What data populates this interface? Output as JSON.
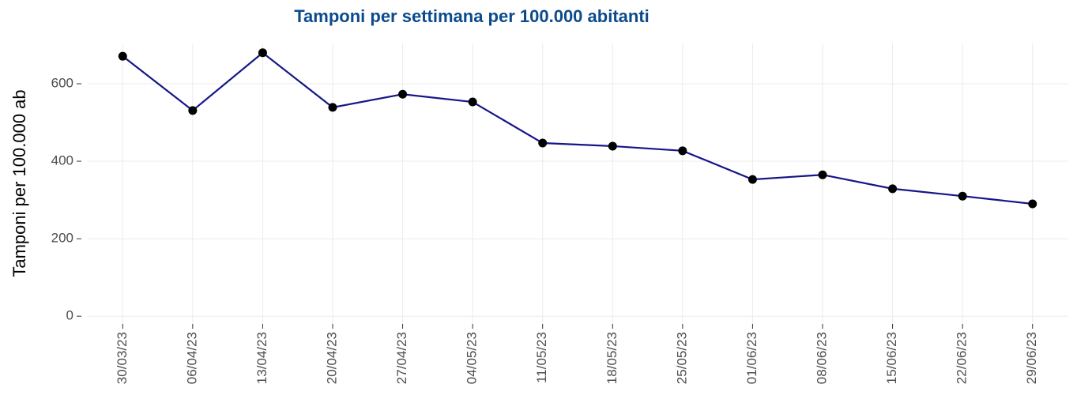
{
  "chart_data": {
    "type": "line",
    "title": "Tamponi per settimana per 100.000 abitanti",
    "y_label": "Tamponi per 100.000 ab",
    "categories": [
      "30/03/23",
      "06/04/23",
      "13/04/23",
      "20/04/23",
      "27/04/23",
      "04/05/23",
      "11/05/23",
      "18/05/23",
      "25/05/23",
      "01/06/23",
      "08/06/23",
      "15/06/23",
      "22/06/23",
      "29/06/23"
    ],
    "values": [
      671,
      531,
      680,
      539,
      573,
      553,
      447,
      439,
      427,
      353,
      365,
      329,
      310,
      290
    ],
    "color": "#15158a",
    "marker_color": "#000000",
    "title_color": "#0b4a8c",
    "ylim": [
      -20,
      704
    ],
    "yticks": [
      0,
      200,
      400,
      600
    ],
    "grid": true
  }
}
